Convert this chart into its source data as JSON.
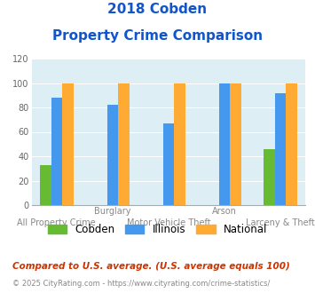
{
  "title_line1": "2018 Cobden",
  "title_line2": "Property Crime Comparison",
  "categories": [
    "All Property Crime",
    "Burglary",
    "Motor Vehicle Theft",
    "Arson",
    "Larceny & Theft"
  ],
  "top_labels": [
    "",
    "Burglary",
    "",
    "Arson",
    ""
  ],
  "bottom_labels": [
    "All Property Crime",
    "",
    "Motor Vehicle Theft",
    "",
    "Larceny & Theft"
  ],
  "cobden": [
    33,
    0,
    0,
    0,
    46
  ],
  "illinois": [
    88,
    82,
    67,
    100,
    92
  ],
  "national": [
    100,
    100,
    100,
    100,
    100
  ],
  "cobden_color": "#66bb33",
  "illinois_color": "#4499ee",
  "national_color": "#ffaa33",
  "bg_color": "#ddeef5",
  "title_color": "#1155cc",
  "ylim": [
    0,
    120
  ],
  "yticks": [
    0,
    20,
    40,
    60,
    80,
    100,
    120
  ],
  "footnote1": "Compared to U.S. average. (U.S. average equals 100)",
  "footnote2": "© 2025 CityRating.com - https://www.cityrating.com/crime-statistics/",
  "legend_labels": [
    "Cobden",
    "Illinois",
    "National"
  ],
  "footnote1_color": "#cc3300",
  "footnote2_color": "#888888"
}
